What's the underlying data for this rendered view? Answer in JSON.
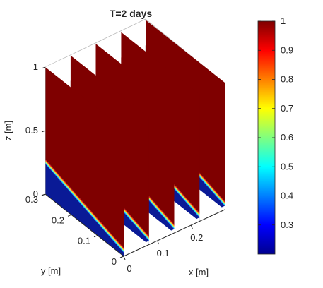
{
  "chart_data": {
    "type": "surface3d-slices",
    "title": "T=2 days",
    "xlabel": "x [m]",
    "ylabel": "y [m]",
    "zlabel": "z [m]",
    "xlim": [
      0,
      0.3
    ],
    "ylim": [
      0,
      0.3
    ],
    "zlim": [
      0,
      1
    ],
    "x_ticks": [
      "0",
      "0.1",
      "0.2"
    ],
    "y_ticks": [
      "0",
      "0.1",
      "0.2",
      "0.3"
    ],
    "z_ticks": [
      "0",
      "0.5",
      "1"
    ],
    "slice_x": [
      0,
      0.075,
      0.15,
      0.225,
      0.3
    ],
    "front_interface_z": {
      "at_y_0": 0.03,
      "at_y_0_3": 0.24
    },
    "colormap": "jet",
    "colorbar": {
      "range": [
        0.2,
        1
      ],
      "ticks": [
        "1",
        "0.9",
        "0.8",
        "0.7",
        "0.6",
        "0.5",
        "0.4",
        "0.3"
      ],
      "placement": "right"
    },
    "colors": {
      "high": "#7f0000",
      "low": "#0a1a96"
    }
  }
}
